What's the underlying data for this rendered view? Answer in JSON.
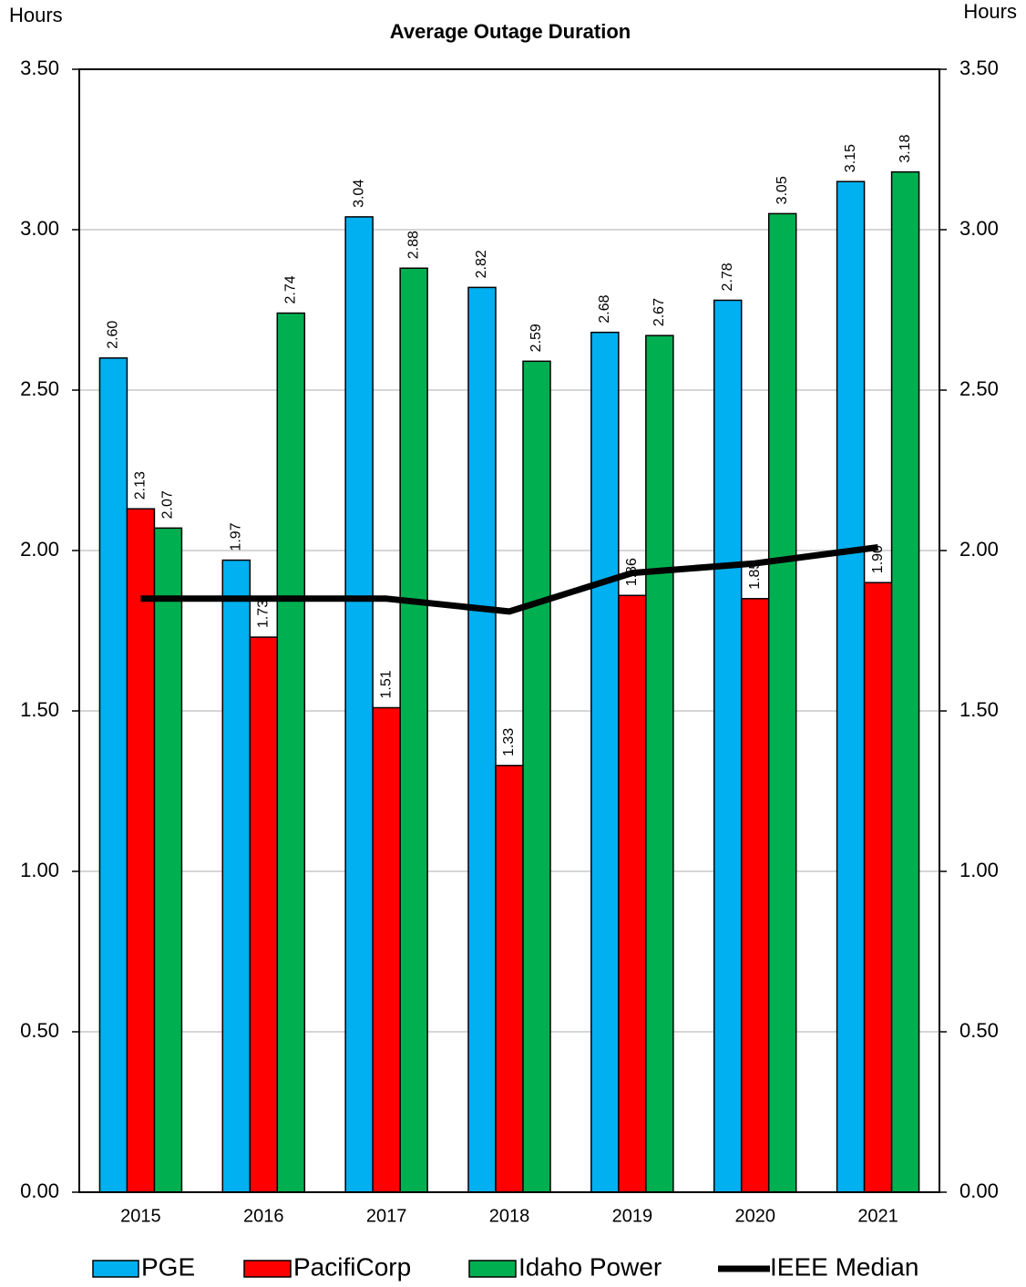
{
  "chart_data": {
    "type": "bar",
    "title": "Average Outage Duration",
    "y_label": "Hours",
    "y2_label": "Hours",
    "categories": [
      "2015",
      "2016",
      "2017",
      "2018",
      "2019",
      "2020",
      "2021"
    ],
    "series": [
      {
        "name": "PGE",
        "color": "#00b0f0",
        "values": [
          2.6,
          1.97,
          3.04,
          2.82,
          2.68,
          2.78,
          3.15
        ],
        "value_labels": [
          "2.60",
          "1.97",
          "3.04",
          "2.82",
          "2.68",
          "2.78",
          "3.15"
        ]
      },
      {
        "name": "PacifiCorp",
        "color": "#ff0000",
        "values": [
          2.13,
          1.73,
          1.51,
          1.33,
          1.86,
          1.85,
          1.9
        ],
        "value_labels": [
          "2.13",
          "1.73",
          "1.51",
          "1.33",
          "1.86",
          "1.85",
          "1.90"
        ]
      },
      {
        "name": "Idaho Power",
        "color": "#00b050",
        "values": [
          2.07,
          2.74,
          2.88,
          2.59,
          2.67,
          3.05,
          3.18
        ],
        "value_labels": [
          "2.07",
          "2.74",
          "2.88",
          "2.59",
          "2.67",
          "3.05",
          "3.18"
        ]
      },
      {
        "name": "IEEE Median",
        "color": "#000000",
        "type": "line",
        "values": [
          1.85,
          1.85,
          1.85,
          1.81,
          1.93,
          1.96,
          2.01
        ]
      }
    ],
    "ylim": [
      0,
      3.5
    ],
    "yticks": [
      {
        "value": 0,
        "label": "0.00"
      },
      {
        "value": 0.5,
        "label": "0.50"
      },
      {
        "value": 1,
        "label": "1.00"
      },
      {
        "value": 1.5,
        "label": "1.50"
      },
      {
        "value": 2,
        "label": "2.00"
      },
      {
        "value": 2.5,
        "label": "2.50"
      },
      {
        "value": 3,
        "label": "3.00"
      },
      {
        "value": 3.5,
        "label": "3.50"
      }
    ],
    "y2lim": [
      0,
      3.5
    ],
    "y2ticks": [
      {
        "value": 0,
        "label": "0.00"
      },
      {
        "value": 0.5,
        "label": "0.50"
      },
      {
        "value": 1,
        "label": "1.00"
      },
      {
        "value": 1.5,
        "label": "1.50"
      },
      {
        "value": 2,
        "label": "2.00"
      },
      {
        "value": 2.5,
        "label": "2.50"
      },
      {
        "value": 3,
        "label": "3.00"
      },
      {
        "value": 3.5,
        "label": "3.50"
      }
    ],
    "grid": true,
    "legend": "bottom"
  }
}
